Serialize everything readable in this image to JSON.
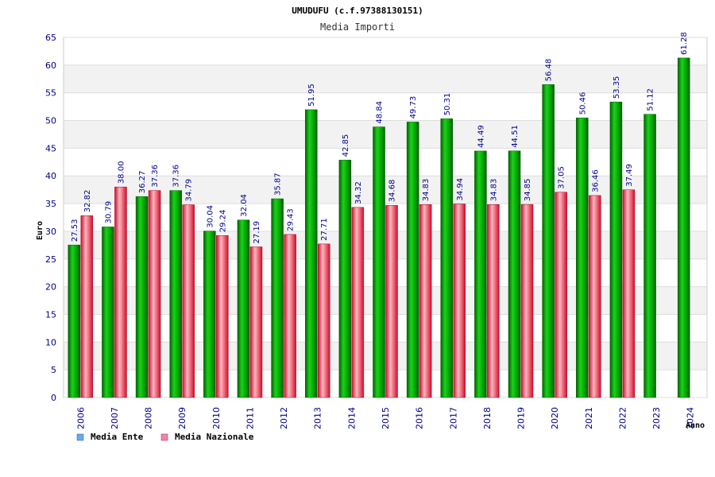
{
  "colors": {
    "ente": "#00b400",
    "ente_dark": "#007a00",
    "nazionale": "#e8283c",
    "nazionale_light": "#f7b0b8",
    "legend_ente": "#6aa8ef",
    "legend_nazionale": "#ee88aa",
    "band": "#f2f2f2",
    "grid": "#dddddd",
    "tick_text": "#00008b"
  },
  "chart_data": {
    "type": "bar",
    "title": "UMUDUFU (c.f.97388130151)",
    "subtitle": "Media Importi",
    "xlabel": "Anno",
    "ylabel": "Euro",
    "ylim": [
      0,
      65
    ],
    "yticks": [
      0,
      5,
      10,
      15,
      20,
      25,
      30,
      35,
      40,
      45,
      50,
      55,
      60,
      65
    ],
    "categories": [
      "2006",
      "2007",
      "2008",
      "2009",
      "2010",
      "2011",
      "2012",
      "2013",
      "2014",
      "2015",
      "2016",
      "2017",
      "2018",
      "2019",
      "2020",
      "2021",
      "2022",
      "2023",
      "2024"
    ],
    "series": [
      {
        "name": "Media Ente",
        "values": [
          27.53,
          30.79,
          36.27,
          37.36,
          30.04,
          32.04,
          35.87,
          51.95,
          42.85,
          48.84,
          49.73,
          50.31,
          44.49,
          44.51,
          56.48,
          50.46,
          53.35,
          51.12,
          61.28
        ],
        "labels": [
          "27.53",
          "30.79",
          "36.27",
          "37.36",
          "30.04",
          "32.04",
          "35.87",
          "51.95",
          "42.85",
          "48.84",
          "49.73",
          "50.31",
          "44.49",
          "44.51",
          "56.48",
          "50.46",
          "53.35",
          "51.12",
          "61.28"
        ]
      },
      {
        "name": "Media Nazionale",
        "values": [
          32.82,
          38.0,
          37.36,
          34.79,
          29.24,
          27.19,
          29.43,
          27.71,
          34.32,
          34.68,
          34.83,
          34.94,
          34.83,
          34.85,
          37.05,
          36.46,
          37.49,
          null,
          null
        ],
        "labels": [
          "32.82",
          "38.00",
          "37.36",
          "34.79",
          "29.24",
          "27.19",
          "29.43",
          "27.71",
          "34.32",
          "34.68",
          "34.83",
          "34.94",
          "34.83",
          "34.85",
          "37.05",
          "36.46",
          "37.49",
          null,
          null
        ]
      }
    ],
    "grid": true,
    "legend_position": "bottom-left"
  }
}
